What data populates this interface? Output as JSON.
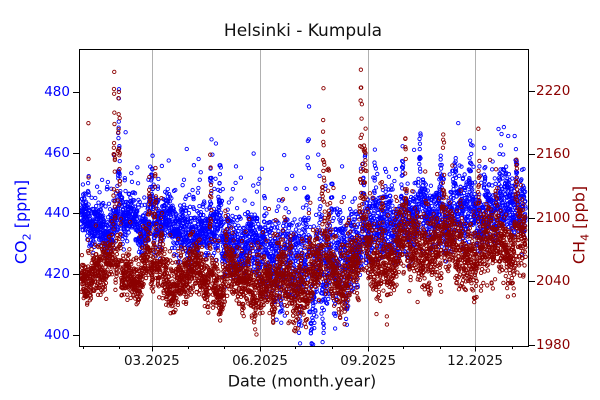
{
  "chart_data": {
    "type": "scatter",
    "title": "Helsinki - Kumpula",
    "xlabel": "Date (month.year)",
    "background": "#ffffff",
    "grid": {
      "vertical_at_major_ticks": true,
      "color": "#b0b0b0"
    },
    "x_axis": {
      "unit": "days (day 0 = 2024-12-29)",
      "range": [
        0,
        382
      ],
      "major_ticks": [
        {
          "label": "03.2025",
          "day": 62
        },
        {
          "label": "06.2025",
          "day": 154
        },
        {
          "label": "09.2025",
          "day": 246
        },
        {
          "label": "12.2025",
          "day": 337
        }
      ],
      "minor_tick_days": [
        3,
        34,
        93,
        123,
        184,
        215,
        276,
        307,
        368
      ]
    },
    "left_axis": {
      "label_main": "CO",
      "label_sub": "2",
      "label_unit": " [ppm]",
      "color": "#0000ff",
      "range": [
        396.5,
        494
      ],
      "ticks": [
        400,
        420,
        440,
        460,
        480
      ]
    },
    "right_axis": {
      "label_main": "CH",
      "label_sub": "4",
      "label_unit": " [ppb]",
      "color": "#8b0000",
      "range": [
        1979,
        2259.5
      ],
      "ticks": [
        1980,
        2040,
        2100,
        2160,
        2220
      ]
    },
    "generation": {
      "seed": 1337,
      "start_day": 2,
      "end_day": 380,
      "step_days": 0.08333
    },
    "series": [
      {
        "name": "CO2",
        "axis": "left",
        "color": "#0000ff",
        "marker": "open-circle",
        "envelope": [
          [
            2,
            436
          ],
          [
            31,
            437
          ],
          [
            62,
            436
          ],
          [
            93,
            434
          ],
          [
            123,
            431
          ],
          [
            154,
            428
          ],
          [
            184,
            424
          ],
          [
            200,
            423
          ],
          [
            215,
            425
          ],
          [
            246,
            432
          ],
          [
            276,
            437
          ],
          [
            307,
            440
          ],
          [
            337,
            439
          ],
          [
            368,
            441
          ],
          [
            380,
            442
          ]
        ],
        "sigma": [
          [
            2,
            2.5
          ],
          [
            154,
            3.5
          ],
          [
            184,
            5
          ],
          [
            246,
            4
          ],
          [
            380,
            4
          ]
        ],
        "diurnal": [
          [
            2,
            2.5
          ],
          [
            123,
            4
          ],
          [
            184,
            9
          ],
          [
            215,
            8
          ],
          [
            246,
            5
          ],
          [
            307,
            5
          ],
          [
            380,
            4
          ]
        ],
        "synoptic": [
          2.0,
          2.5
        ],
        "burst_p": 0.06,
        "burst_scale": [
          [
            2,
            9
          ],
          [
            184,
            15
          ],
          [
            380,
            12
          ]
        ],
        "events": [
          [
            8,
            45,
            0.4
          ],
          [
            34,
            44,
            1.5
          ],
          [
            62,
            24,
            2
          ],
          [
            67,
            21,
            1.5
          ],
          [
            97,
            19,
            1.5
          ],
          [
            112,
            26,
            1.5
          ],
          [
            120,
            27,
            2
          ],
          [
            127,
            18,
            1.5
          ],
          [
            158,
            20,
            1.5
          ],
          [
            170,
            14,
            1.5
          ],
          [
            195,
            44,
            2
          ],
          [
            205,
            30,
            1.5
          ],
          [
            215,
            27,
            1.5
          ],
          [
            242,
            26,
            2
          ],
          [
            252,
            22,
            1.5
          ],
          [
            275,
            31,
            1.5
          ],
          [
            290,
            22,
            1.5
          ],
          [
            308,
            24,
            1.5
          ],
          [
            320,
            19,
            1.5
          ],
          [
            333,
            21,
            1.5
          ],
          [
            345,
            22,
            1.5
          ],
          [
            358,
            18,
            1.5
          ],
          [
            372,
            21,
            1.5
          ],
          [
            160,
            -12,
            2
          ],
          [
            172,
            -14,
            2
          ],
          [
            188,
            -23,
            2.5
          ],
          [
            198,
            -25,
            2.5
          ],
          [
            207,
            -24,
            2.5
          ],
          [
            218,
            -21,
            2.5
          ],
          [
            228,
            -17,
            2.5
          ]
        ]
      },
      {
        "name": "CH4",
        "axis": "right",
        "color": "#8b0000",
        "marker": "open-circle",
        "envelope": [
          [
            2,
            2050
          ],
          [
            31,
            2050
          ],
          [
            62,
            2046
          ],
          [
            93,
            2042
          ],
          [
            123,
            2040
          ],
          [
            154,
            2037
          ],
          [
            184,
            2036
          ],
          [
            215,
            2046
          ],
          [
            246,
            2060
          ],
          [
            276,
            2068
          ],
          [
            307,
            2070
          ],
          [
            337,
            2063
          ],
          [
            368,
            2075
          ],
          [
            380,
            2078
          ]
        ],
        "sigma": [
          [
            2,
            8
          ],
          [
            154,
            8
          ],
          [
            215,
            12
          ],
          [
            380,
            13
          ]
        ],
        "diurnal": [
          [
            2,
            8
          ],
          [
            184,
            14
          ],
          [
            380,
            12
          ]
        ],
        "synoptic": [
          7.0,
          9.0
        ],
        "burst_p": 0.08,
        "burst_scale": [
          [
            2,
            20
          ],
          [
            215,
            28
          ],
          [
            380,
            28
          ]
        ],
        "events": [
          [
            8,
            185,
            0.4
          ],
          [
            30,
            195,
            1
          ],
          [
            34,
            200,
            2
          ],
          [
            60,
            100,
            1.5
          ],
          [
            65,
            108,
            1.5
          ],
          [
            70,
            78,
            1.2
          ],
          [
            94,
            60,
            1.5
          ],
          [
            112,
            130,
            1.5
          ],
          [
            125,
            85,
            1.5
          ],
          [
            152,
            65,
            1.5
          ],
          [
            180,
            55,
            1.5
          ],
          [
            196,
            72,
            1.5
          ],
          [
            208,
            180,
            2
          ],
          [
            212,
            140,
            1.5
          ],
          [
            240,
            190,
            2
          ],
          [
            243,
            185,
            1.5
          ],
          [
            258,
            80,
            1.2
          ],
          [
            278,
            120,
            1.5
          ],
          [
            295,
            75,
            1.5
          ],
          [
            310,
            120,
            1.5
          ],
          [
            325,
            70,
            1.5
          ],
          [
            340,
            120,
            1.5
          ],
          [
            355,
            70,
            1.5
          ],
          [
            372,
            115,
            1.5
          ],
          [
            94,
            -28,
            1.5
          ],
          [
            120,
            -24,
            1.5
          ],
          [
            140,
            -28,
            1.5
          ],
          [
            165,
            -33,
            2
          ],
          [
            185,
            -28,
            2
          ],
          [
            230,
            -24,
            1.5
          ],
          [
            262,
            -50,
            0.5
          ]
        ]
      }
    ]
  }
}
